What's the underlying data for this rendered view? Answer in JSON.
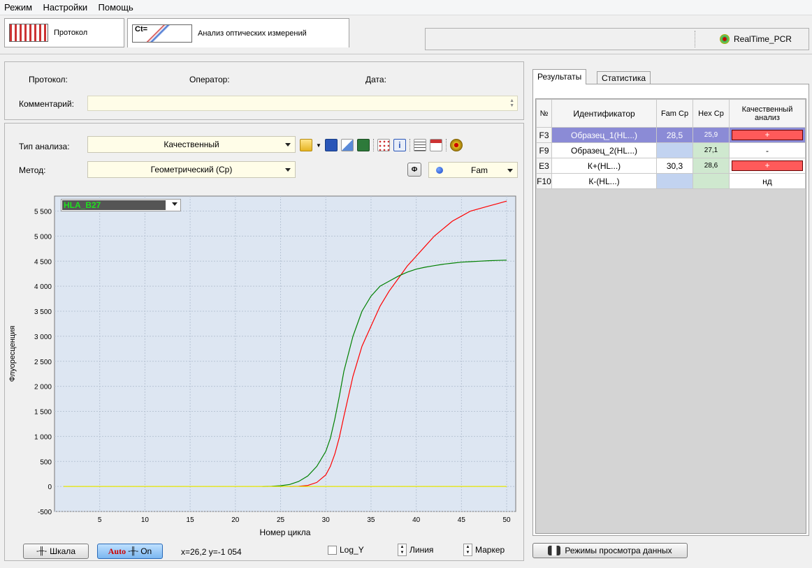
{
  "menu": {
    "items": [
      "Режим",
      "Настройки",
      "Помощь"
    ]
  },
  "toolbar": {
    "protocol_tab": "Протокол",
    "analysis_tab": "Анализ оптических измерений",
    "analysis_icon_text": "Ct=",
    "app_name": "RealTime_PCR"
  },
  "info": {
    "protocol_label": "Протокол:",
    "operator_label": "Оператор:",
    "date_label": "Дата:",
    "comment_label": "Комментарий:"
  },
  "controls": {
    "analysis_type_label": "Тип анализа:",
    "analysis_type_value": "Качественный",
    "method_label": "Метод:",
    "method_value": "Геометрический (Cp)",
    "phi_label": "Ф",
    "channel_value": "Fam"
  },
  "chart_header": {
    "target_value": "HLA_B27"
  },
  "chart_data": {
    "type": "line",
    "xlabel": "Номер цикла",
    "ylabel": "Флуоресценция",
    "xlim": [
      0,
      51
    ],
    "ylim": [
      -500,
      5800
    ],
    "xticks": [
      5,
      10,
      15,
      20,
      25,
      30,
      35,
      40,
      45,
      50
    ],
    "yticks": [
      -500,
      0,
      500,
      1000,
      1500,
      2000,
      2500,
      3000,
      3500,
      4000,
      4500,
      5000,
      5500
    ],
    "ytick_labels": [
      "-500",
      "0",
      "500",
      "1 000",
      "1 500",
      "2 000",
      "2 500",
      "3 000",
      "3 500",
      "4 000",
      "4 500",
      "5 000",
      "5 500"
    ],
    "grid": true,
    "series": [
      {
        "color": "#ff0000",
        "x": [
          26,
          27,
          28,
          29,
          30,
          30.5,
          31,
          31.5,
          32,
          33,
          34,
          35,
          36,
          37,
          38,
          39,
          40,
          41,
          42,
          43,
          44,
          45,
          46,
          47,
          48,
          49,
          50
        ],
        "y": [
          0,
          5,
          20,
          80,
          230,
          400,
          650,
          980,
          1400,
          2200,
          2800,
          3200,
          3600,
          3900,
          4150,
          4400,
          4600,
          4800,
          5000,
          5150,
          5300,
          5400,
          5500,
          5550,
          5600,
          5650,
          5700
        ]
      },
      {
        "color": "#008000",
        "x": [
          23,
          24,
          25,
          26,
          27,
          28,
          29,
          30,
          30.5,
          31,
          31.5,
          32,
          33,
          34,
          35,
          36,
          37,
          38,
          39,
          40,
          41,
          42,
          43,
          44,
          45,
          46,
          47,
          48,
          49,
          50
        ],
        "y": [
          0,
          5,
          15,
          40,
          100,
          210,
          400,
          700,
          960,
          1350,
          1800,
          2300,
          3000,
          3500,
          3800,
          4000,
          4100,
          4200,
          4280,
          4340,
          4380,
          4410,
          4440,
          4460,
          4480,
          4490,
          4500,
          4510,
          4515,
          4520
        ]
      },
      {
        "color": "#e6e600",
        "x": [
          1,
          50
        ],
        "y": [
          0,
          0
        ]
      }
    ]
  },
  "bottom": {
    "scale_btn": "Шкала",
    "auto_btn": "Auto",
    "on_btn": "On",
    "coords": "x=26,2 y=-1 054",
    "logy_label": "Log_Y",
    "line_label": "Линия",
    "marker_label": "Маркер",
    "view_modes_btn": "Режимы просмотра данных"
  },
  "results": {
    "tabs": [
      "Результаты",
      "Статистика"
    ],
    "headers": [
      "№",
      "Идентификатор",
      "Fam Cp",
      "Hex Cp",
      "Качественный анализ"
    ],
    "rows": [
      {
        "num": "F3",
        "id": "Образец_1(HL...)",
        "fam": "28,5",
        "hex": "25,9",
        "qual": "+"
      },
      {
        "num": "F9",
        "id": "Образец_2(HL...)",
        "fam": "",
        "hex": "27,1",
        "qual": "-"
      },
      {
        "num": "E3",
        "id": "К+(HL...)",
        "fam": "30,3",
        "hex": "28,6",
        "qual": "+"
      },
      {
        "num": "F10",
        "id": "К-(HL...)",
        "fam": "",
        "hex": "",
        "qual": "нд"
      }
    ]
  }
}
